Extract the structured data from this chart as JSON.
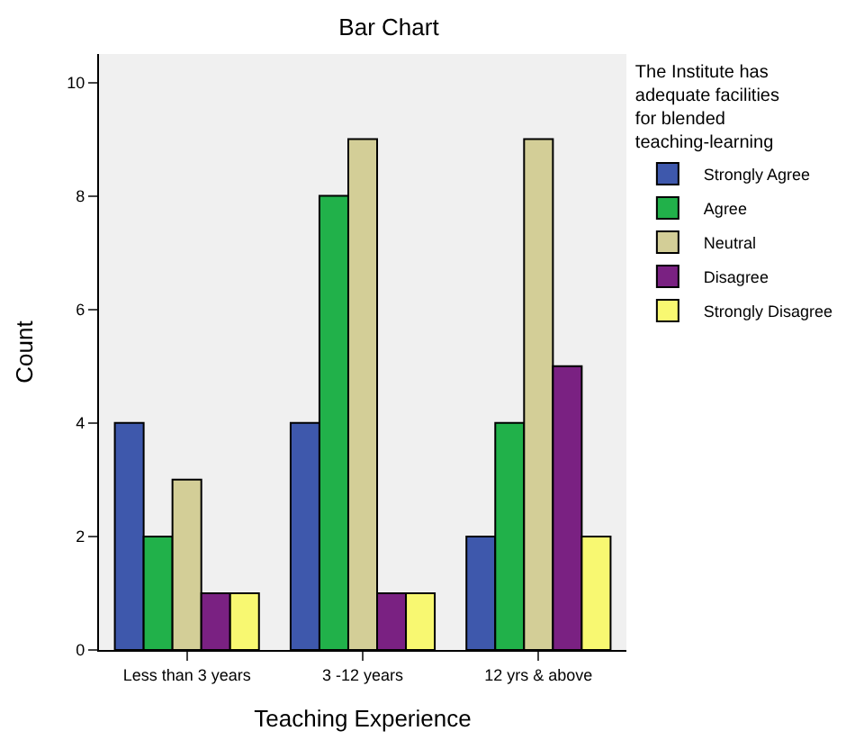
{
  "chart_data": {
    "type": "bar",
    "title": "Bar Chart",
    "xlabel": "Teaching Experience",
    "ylabel": "Count",
    "legend_title": "The Institute has adequate facilities for blended teaching-learning",
    "categories": [
      "Less than 3 years",
      "3 -12 years",
      "12 yrs & above"
    ],
    "series": [
      {
        "name": "Strongly Agree",
        "color": "#3e58ac",
        "values": [
          4,
          4,
          2
        ]
      },
      {
        "name": "Agree",
        "color": "#21b14a",
        "values": [
          2,
          8,
          4
        ]
      },
      {
        "name": "Neutral",
        "color": "#d3ce97",
        "values": [
          3,
          9,
          9
        ]
      },
      {
        "name": "Disagree",
        "color": "#7a2182",
        "values": [
          1,
          1,
          5
        ]
      },
      {
        "name": "Strongly Disagree",
        "color": "#f8f871",
        "values": [
          1,
          1,
          2
        ]
      }
    ],
    "ylim": [
      0,
      10.5
    ],
    "yticks": [
      0,
      2,
      4,
      6,
      8,
      10
    ],
    "grid": false,
    "legend": "right"
  }
}
